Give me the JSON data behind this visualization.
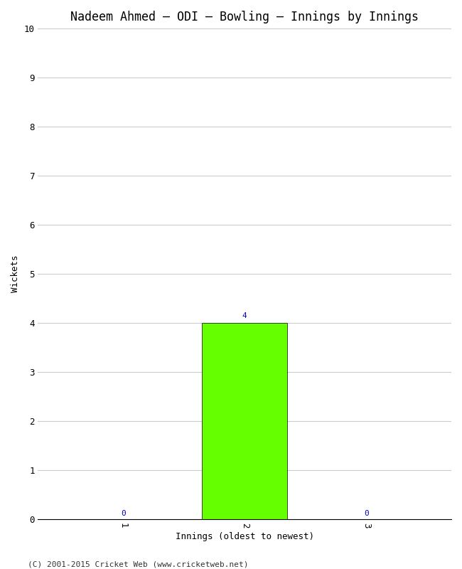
{
  "title": "Nadeem Ahmed – ODI – Bowling – Innings by Innings",
  "xlabel": "Innings (oldest to newest)",
  "ylabel": "Wickets",
  "categories": [
    1,
    2,
    3
  ],
  "values": [
    0,
    4,
    0
  ],
  "bar_color": "#66ff00",
  "bar_edge_color": "#000000",
  "ylim": [
    0,
    10
  ],
  "yticks": [
    0,
    1,
    2,
    3,
    4,
    5,
    6,
    7,
    8,
    9,
    10
  ],
  "xticks": [
    1,
    2,
    3
  ],
  "label_color": "#0000cc",
  "background_color": "#ffffff",
  "footer": "(C) 2001-2015 Cricket Web (www.cricketweb.net)",
  "title_fontsize": 12,
  "axis_label_fontsize": 9,
  "tick_label_fontsize": 9,
  "bar_label_fontsize": 8,
  "footer_fontsize": 8,
  "bar_width": 0.7
}
